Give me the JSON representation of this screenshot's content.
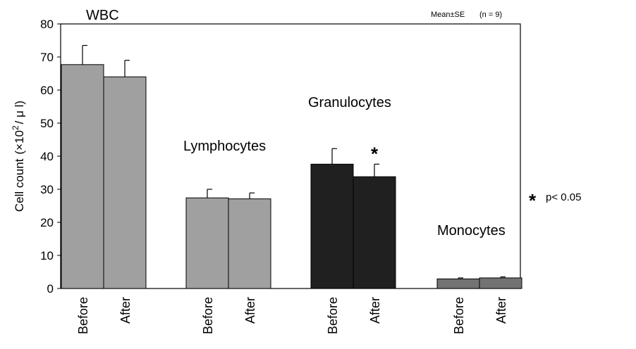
{
  "chart_data": {
    "type": "bar",
    "ylabel_main": "Cell count",
    "ylabel_unit_open": "(×10",
    "ylabel_unit_sup": "2",
    "ylabel_unit_close": "/ μ l)",
    "ylim": [
      0,
      80
    ],
    "yticks": [
      "0",
      "10",
      "20",
      "30",
      "40",
      "50",
      "60",
      "70",
      "80"
    ],
    "stat_note": "Mean±SE",
    "n_note": "(n = 9)",
    "grid": false,
    "groups": [
      {
        "name": "WBC",
        "color": "#a0a0a0",
        "bars": [
          {
            "label": "Before",
            "value": 67.7,
            "se": 5.8
          },
          {
            "label": "After",
            "value": 64.0,
            "se": 5.0
          }
        ]
      },
      {
        "name": "Lymphocytes",
        "color": "#a0a0a0",
        "bars": [
          {
            "label": "Before",
            "value": 27.4,
            "se": 2.6
          },
          {
            "label": "After",
            "value": 27.1,
            "se": 1.8
          }
        ]
      },
      {
        "name": "Granulocytes",
        "color": "#202020",
        "bars": [
          {
            "label": "Before",
            "value": 37.6,
            "se": 4.7
          },
          {
            "label": "After",
            "value": 33.8,
            "se": 3.8,
            "significant": true
          }
        ]
      },
      {
        "name": "Monocytes",
        "color": "#737373",
        "bars": [
          {
            "label": "Before",
            "value": 2.9,
            "se": 0.3
          },
          {
            "label": "After",
            "value": 3.2,
            "se": 0.3
          }
        ]
      }
    ],
    "significance_marker": "*",
    "significance_legend": "p< 0.05"
  }
}
